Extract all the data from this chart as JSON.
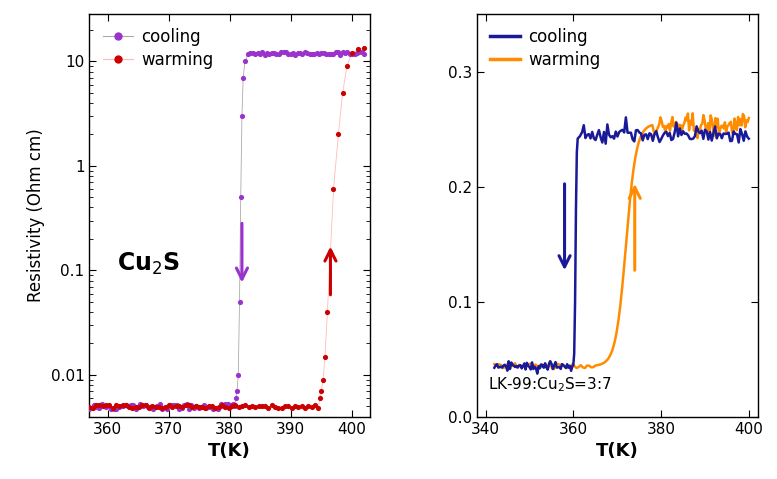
{
  "left_xlim": [
    357,
    403
  ],
  "right_xlim": [
    338,
    402
  ],
  "right_ylim": [
    0.0,
    0.35
  ],
  "left_xlabel": "T(K)",
  "right_xlabel": "T(K)",
  "ylabel": "Resistivity (Ohm cm)",
  "left_label": "Cu$_2$S",
  "right_label": "LK-99:Cu$_2$S=3:7",
  "cool_color_left": "#9933CC",
  "warm_color_left": "#CC0000",
  "cool_color_right": "#1a1a99",
  "warm_color_right": "#FF8C00",
  "bg_color": "#ffffff",
  "left_xticks": [
    360,
    370,
    380,
    390,
    400
  ],
  "right_xticks": [
    340,
    360,
    380,
    400
  ],
  "left_yticks_log": [
    0.01,
    0.1,
    1,
    10
  ],
  "right_yticks": [
    0.0,
    0.1,
    0.2,
    0.3
  ]
}
